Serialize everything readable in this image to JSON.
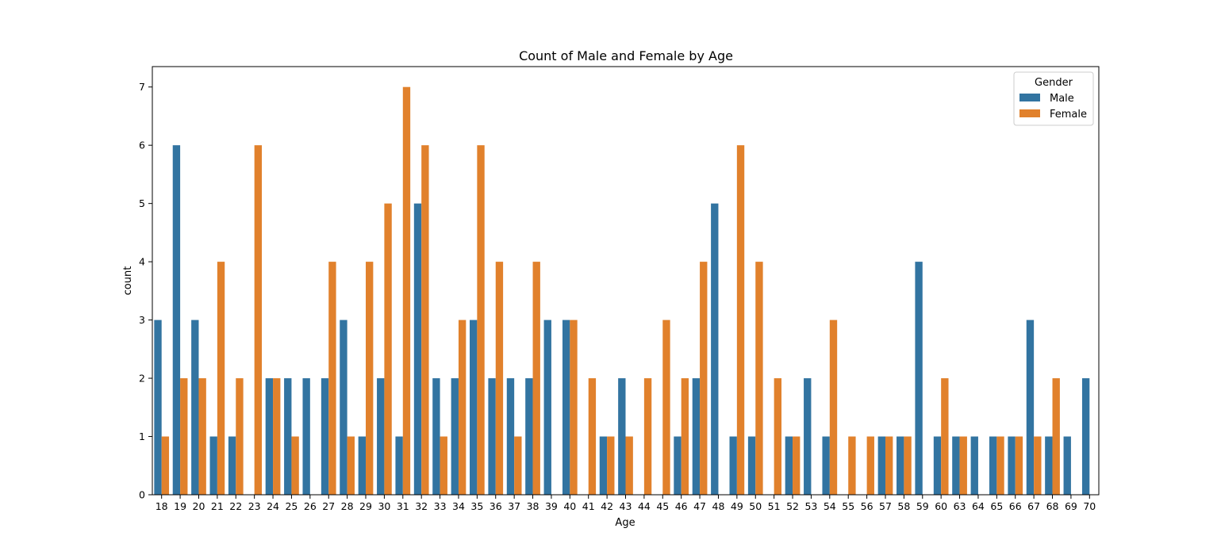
{
  "chart_data": {
    "type": "bar",
    "title": "Count of Male and Female by Age",
    "xlabel": "Age",
    "ylabel": "count",
    "ylim": [
      0,
      7.35
    ],
    "yticks": [
      0,
      1,
      2,
      3,
      4,
      5,
      6,
      7
    ],
    "grid": false,
    "legend": {
      "title": "Gender",
      "placement": "top-right"
    },
    "categories": [
      "18",
      "19",
      "20",
      "21",
      "22",
      "23",
      "24",
      "25",
      "26",
      "27",
      "28",
      "29",
      "30",
      "31",
      "32",
      "33",
      "34",
      "35",
      "36",
      "37",
      "38",
      "39",
      "40",
      "41",
      "42",
      "43",
      "44",
      "45",
      "46",
      "47",
      "48",
      "49",
      "50",
      "51",
      "52",
      "53",
      "54",
      "55",
      "56",
      "57",
      "58",
      "59",
      "60",
      "63",
      "64",
      "65",
      "66",
      "67",
      "68",
      "69",
      "70"
    ],
    "series": [
      {
        "name": "Male",
        "color": "#3274a1",
        "values": [
          3,
          6,
          3,
          1,
          1,
          0,
          2,
          2,
          2,
          2,
          3,
          1,
          2,
          1,
          5,
          2,
          2,
          3,
          2,
          2,
          2,
          3,
          3,
          0,
          1,
          2,
          0,
          0,
          1,
          2,
          5,
          1,
          1,
          0,
          1,
          2,
          1,
          0,
          0,
          1,
          1,
          4,
          1,
          1,
          1,
          1,
          1,
          3,
          1,
          1,
          2
        ]
      },
      {
        "name": "Female",
        "color": "#e1812c",
        "values": [
          1,
          2,
          2,
          4,
          2,
          6,
          2,
          1,
          0,
          4,
          1,
          4,
          5,
          7,
          6,
          1,
          3,
          6,
          4,
          1,
          4,
          0,
          3,
          2,
          1,
          1,
          2,
          3,
          2,
          4,
          0,
          6,
          4,
          2,
          1,
          0,
          3,
          1,
          1,
          1,
          1,
          0,
          2,
          1,
          0,
          1,
          1,
          1,
          2,
          0,
          0
        ]
      }
    ]
  }
}
